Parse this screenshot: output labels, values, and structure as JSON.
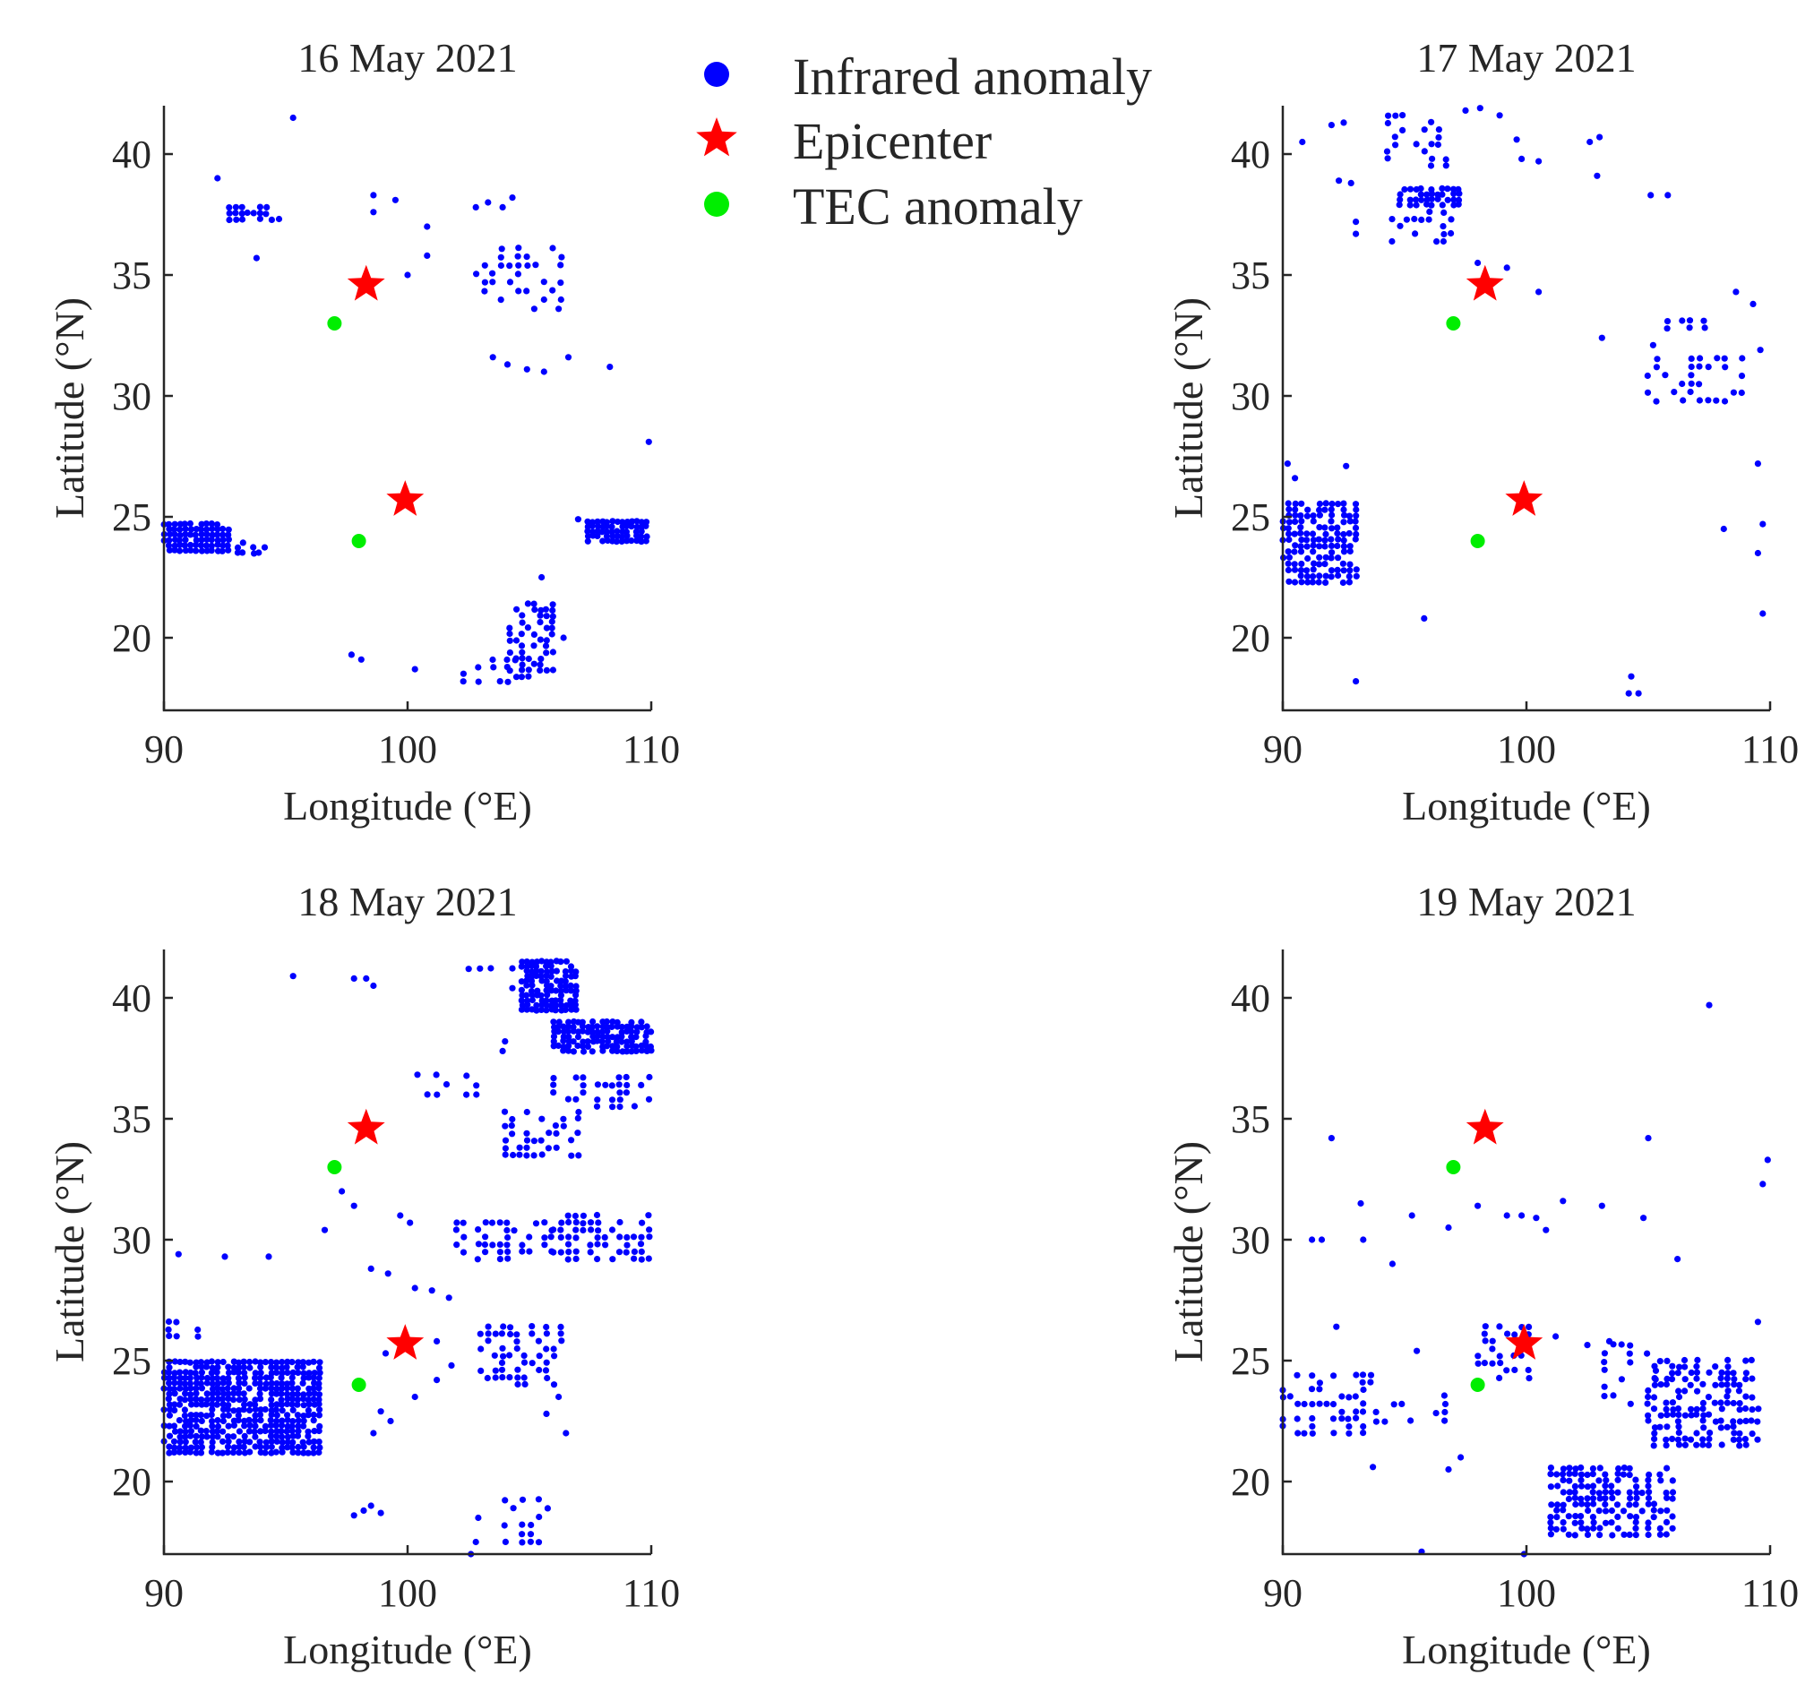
{
  "figure": {
    "legend": {
      "infrared_label": "Infrared anomaly",
      "epicenter_label": "Epicenter",
      "tec_label": "TEC anomaly"
    },
    "colors": {
      "infrared": "#0000ff",
      "epicenter": "#ff0000",
      "tec": "#00ee00",
      "axis": "#262626"
    }
  },
  "chart_data": [
    {
      "type": "scatter",
      "title": "16 May 2021",
      "xlabel": "Longitude (°E)",
      "ylabel": "Latitude (°N)",
      "xlim": [
        90,
        110
      ],
      "ylim": [
        17,
        42
      ],
      "xticks": [
        "90",
        "100",
        "110"
      ],
      "yticks": [
        "20",
        "25",
        "30",
        "35",
        "40"
      ],
      "epicenters": [
        [
          98.3,
          34.6
        ],
        [
          99.9,
          25.7
        ]
      ],
      "tec": [
        [
          97.0,
          33.0
        ],
        [
          98.0,
          24.0
        ]
      ],
      "infrared_clusters": [
        {
          "bx": [
            90.0,
            92.8
          ],
          "by": [
            23.6,
            24.9
          ],
          "step": 0.22,
          "fill": 0.9
        },
        {
          "bx": [
            92.8,
            94.2
          ],
          "by": [
            23.5,
            24.0
          ],
          "step": 0.22,
          "fill": 0.6
        },
        {
          "bx": [
            92.7,
            94.8
          ],
          "by": [
            37.3,
            37.8
          ],
          "step": 0.25,
          "fill": 0.7
        },
        {
          "bx": [
            102.8,
            106.3
          ],
          "by": [
            34.0,
            36.3
          ],
          "step": 0.35,
          "fill": 0.4
        },
        {
          "bx": [
            102.3,
            104.6
          ],
          "by": [
            18.2,
            19.2
          ],
          "step": 0.3,
          "fill": 0.45
        },
        {
          "bx": [
            104.2,
            106.0
          ],
          "by": [
            18.4,
            21.4
          ],
          "step": 0.25,
          "fill": 0.55
        },
        {
          "bx": [
            107.4,
            109.8
          ],
          "by": [
            24.0,
            24.9
          ],
          "step": 0.2,
          "fill": 0.8
        }
      ],
      "infrared_points": [
        [
          95.3,
          41.5
        ],
        [
          92.2,
          39.0
        ],
        [
          93.8,
          35.7
        ],
        [
          98.6,
          38.3
        ],
        [
          98.6,
          37.6
        ],
        [
          99.5,
          38.1
        ],
        [
          100.0,
          35.0
        ],
        [
          100.8,
          37.0
        ],
        [
          100.8,
          35.8
        ],
        [
          102.8,
          37.8
        ],
        [
          103.3,
          38.0
        ],
        [
          103.9,
          37.8
        ],
        [
          104.3,
          38.2
        ],
        [
          103.5,
          31.6
        ],
        [
          104.1,
          31.3
        ],
        [
          104.9,
          31.1
        ],
        [
          105.6,
          31.0
        ],
        [
          106.6,
          31.6
        ],
        [
          105.2,
          33.6
        ],
        [
          106.2,
          33.6
        ],
        [
          108.3,
          31.2
        ],
        [
          109.9,
          28.1
        ],
        [
          107.0,
          24.9
        ],
        [
          97.7,
          19.3
        ],
        [
          98.1,
          19.1
        ],
        [
          100.3,
          18.7
        ],
        [
          105.5,
          22.5
        ],
        [
          106.4,
          20.0
        ]
      ]
    },
    {
      "type": "scatter",
      "title": "17 May 2021",
      "xlabel": "Longitude (°E)",
      "ylabel": "Latitude (°N)",
      "xlim": [
        90,
        110
      ],
      "ylim": [
        17,
        42
      ],
      "xticks": [
        "90",
        "100",
        "110"
      ],
      "yticks": [
        "20",
        "25",
        "30",
        "35",
        "40"
      ],
      "epicenters": [
        [
          98.3,
          34.6
        ],
        [
          99.9,
          25.7
        ]
      ],
      "tec": [
        [
          97.0,
          33.0
        ],
        [
          98.0,
          24.0
        ]
      ],
      "infrared_clusters": [
        {
          "bx": [
            90.0,
            93.2
          ],
          "by": [
            22.3,
            25.6
          ],
          "step": 0.25,
          "fill": 0.7
        },
        {
          "bx": [
            94.3,
            97.2
          ],
          "by": [
            39.5,
            41.8
          ],
          "step": 0.3,
          "fill": 0.35
        },
        {
          "bx": [
            94.8,
            97.3
          ],
          "by": [
            37.9,
            38.6
          ],
          "step": 0.22,
          "fill": 0.7
        },
        {
          "bx": [
            94.5,
            97.0
          ],
          "by": [
            36.4,
            37.6
          ],
          "step": 0.3,
          "fill": 0.4
        },
        {
          "bx": [
            105.0,
            109.0
          ],
          "by": [
            29.8,
            31.8
          ],
          "step": 0.35,
          "fill": 0.35
        },
        {
          "bx": [
            105.8,
            107.3
          ],
          "by": [
            32.8,
            33.1
          ],
          "step": 0.3,
          "fill": 0.6
        }
      ],
      "infrared_points": [
        [
          90.8,
          40.5
        ],
        [
          92.0,
          41.2
        ],
        [
          92.5,
          41.3
        ],
        [
          92.3,
          38.9
        ],
        [
          92.8,
          38.8
        ],
        [
          93.0,
          37.2
        ],
        [
          93.0,
          36.7
        ],
        [
          97.5,
          41.8
        ],
        [
          98.1,
          41.9
        ],
        [
          98.9,
          41.6
        ],
        [
          98.0,
          35.5
        ],
        [
          99.2,
          35.3
        ],
        [
          99.6,
          40.6
        ],
        [
          99.8,
          39.8
        ],
        [
          100.5,
          39.7
        ],
        [
          100.5,
          34.3
        ],
        [
          102.6,
          40.5
        ],
        [
          103.0,
          40.7
        ],
        [
          102.9,
          39.1
        ],
        [
          103.1,
          32.4
        ],
        [
          105.1,
          38.3
        ],
        [
          105.8,
          38.3
        ],
        [
          105.2,
          32.1
        ],
        [
          108.6,
          34.3
        ],
        [
          109.3,
          33.8
        ],
        [
          109.6,
          31.9
        ],
        [
          109.5,
          27.2
        ],
        [
          109.7,
          24.7
        ],
        [
          109.5,
          23.5
        ],
        [
          108.1,
          24.5
        ],
        [
          109.7,
          21.0
        ],
        [
          90.2,
          27.2
        ],
        [
          90.5,
          26.6
        ],
        [
          92.6,
          27.1
        ],
        [
          95.8,
          20.8
        ],
        [
          93.0,
          18.2
        ],
        [
          104.3,
          18.4
        ],
        [
          104.6,
          17.7
        ],
        [
          104.2,
          17.7
        ]
      ]
    },
    {
      "type": "scatter",
      "title": "18 May 2021",
      "xlabel": "Longitude (°E)",
      "ylabel": "Latitude (°N)",
      "xlim": [
        90,
        110
      ],
      "ylim": [
        17,
        42
      ],
      "xticks": [
        "90",
        "100",
        "110"
      ],
      "yticks": [
        "20",
        "25",
        "30",
        "35",
        "40"
      ],
      "epicenters": [
        [
          98.3,
          34.6
        ],
        [
          99.9,
          25.7
        ]
      ],
      "tec": [
        [
          97.0,
          33.0
        ],
        [
          98.0,
          24.0
        ]
      ],
      "infrared_clusters": [
        {
          "bx": [
            90.0,
            96.5
          ],
          "by": [
            21.2,
            25.0
          ],
          "step": 0.22,
          "fill": 0.8
        },
        {
          "bx": [
            90.2,
            91.5
          ],
          "by": [
            26.0,
            26.7
          ],
          "step": 0.3,
          "fill": 0.5
        },
        {
          "bx": [
            104.7,
            107.0
          ],
          "by": [
            39.5,
            41.6
          ],
          "step": 0.2,
          "fill": 0.85
        },
        {
          "bx": [
            106.0,
            110.0
          ],
          "by": [
            37.8,
            39.0
          ],
          "step": 0.2,
          "fill": 0.8
        },
        {
          "bx": [
            106.0,
            110.0
          ],
          "by": [
            35.5,
            36.9
          ],
          "step": 0.3,
          "fill": 0.55
        },
        {
          "bx": [
            104.0,
            107.0
          ],
          "by": [
            33.5,
            35.5
          ],
          "step": 0.3,
          "fill": 0.35
        },
        {
          "bx": [
            102.0,
            106.0
          ],
          "by": [
            29.2,
            30.8
          ],
          "step": 0.3,
          "fill": 0.4
        },
        {
          "bx": [
            106.0,
            110.0
          ],
          "by": [
            29.2,
            31.2
          ],
          "step": 0.3,
          "fill": 0.5
        },
        {
          "bx": [
            103.0,
            106.5
          ],
          "by": [
            24.0,
            26.5
          ],
          "step": 0.3,
          "fill": 0.45
        },
        {
          "bx": [
            104.0,
            106.0
          ],
          "by": [
            17.5,
            19.8
          ],
          "step": 0.35,
          "fill": 0.35
        },
        {
          "bx": [
            100.0,
            102.8
          ],
          "by": [
            36.0,
            36.8
          ],
          "step": 0.4,
          "fill": 0.5
        },
        {
          "bx": [
            102.5,
            104.5
          ],
          "by": [
            41.2,
            41.4
          ],
          "step": 0.45,
          "fill": 0.8
        }
      ],
      "infrared_points": [
        [
          95.3,
          40.9
        ],
        [
          97.8,
          40.8
        ],
        [
          98.3,
          40.8
        ],
        [
          98.6,
          40.5
        ],
        [
          90.6,
          29.4
        ],
        [
          92.5,
          29.3
        ],
        [
          94.3,
          29.3
        ],
        [
          96.6,
          30.4
        ],
        [
          97.8,
          31.4
        ],
        [
          97.3,
          32.0
        ],
        [
          99.7,
          31.0
        ],
        [
          100.1,
          30.7
        ],
        [
          98.5,
          28.8
        ],
        [
          99.2,
          28.6
        ],
        [
          100.3,
          28.0
        ],
        [
          101.0,
          27.9
        ],
        [
          101.7,
          27.6
        ],
        [
          99.1,
          25.3
        ],
        [
          98.9,
          22.9
        ],
        [
          98.6,
          22.0
        ],
        [
          99.3,
          22.5
        ],
        [
          101.2,
          25.8
        ],
        [
          101.8,
          24.8
        ],
        [
          101.2,
          24.2
        ],
        [
          100.3,
          23.5
        ],
        [
          98.5,
          19.0
        ],
        [
          98.2,
          18.8
        ],
        [
          97.8,
          18.6
        ],
        [
          98.9,
          18.7
        ],
        [
          102.9,
          18.5
        ],
        [
          102.8,
          17.5
        ],
        [
          102.6,
          17.0
        ],
        [
          104.3,
          40.4
        ],
        [
          104.0,
          38.2
        ],
        [
          103.9,
          37.8
        ],
        [
          105.7,
          22.8
        ],
        [
          106.5,
          22.0
        ],
        [
          106.2,
          23.5
        ]
      ]
    },
    {
      "type": "scatter",
      "title": "19 May 2021",
      "xlabel": "Longitude (°E)",
      "ylabel": "Latitude (°N)",
      "xlim": [
        90,
        110
      ],
      "ylim": [
        17,
        42
      ],
      "xticks": [
        "90",
        "100",
        "110"
      ],
      "yticks": [
        "20",
        "25",
        "30",
        "35",
        "40"
      ],
      "epicenters": [
        [
          98.3,
          34.6
        ],
        [
          99.9,
          25.7
        ]
      ],
      "tec": [
        [
          97.0,
          33.0
        ],
        [
          98.0,
          24.0
        ]
      ],
      "infrared_clusters": [
        {
          "bx": [
            90.0,
            93.7
          ],
          "by": [
            22.0,
            24.5
          ],
          "step": 0.3,
          "fill": 0.35
        },
        {
          "bx": [
            93.5,
            96.8
          ],
          "by": [
            22.5,
            23.8
          ],
          "step": 0.35,
          "fill": 0.3
        },
        {
          "bx": [
            98.0,
            100.2
          ],
          "by": [
            24.0,
            26.5
          ],
          "step": 0.3,
          "fill": 0.35
        },
        {
          "bx": [
            101.0,
            106.0
          ],
          "by": [
            17.8,
            20.6
          ],
          "step": 0.25,
          "fill": 0.5
        },
        {
          "bx": [
            105.0,
            109.5
          ],
          "by": [
            21.5,
            25.0
          ],
          "step": 0.25,
          "fill": 0.45
        },
        {
          "bx": [
            102.5,
            105.5
          ],
          "by": [
            23.2,
            25.8
          ],
          "step": 0.35,
          "fill": 0.25
        }
      ],
      "infrared_points": [
        [
          107.5,
          39.7
        ],
        [
          92.0,
          34.2
        ],
        [
          105.0,
          34.2
        ],
        [
          109.9,
          33.3
        ],
        [
          109.7,
          32.3
        ],
        [
          93.2,
          31.5
        ],
        [
          95.3,
          31.0
        ],
        [
          91.2,
          30.0
        ],
        [
          91.6,
          30.0
        ],
        [
          93.3,
          30.0
        ],
        [
          94.5,
          29.0
        ],
        [
          96.8,
          30.5
        ],
        [
          98.0,
          31.4
        ],
        [
          99.2,
          31.0
        ],
        [
          99.8,
          31.0
        ],
        [
          100.4,
          30.9
        ],
        [
          100.8,
          30.4
        ],
        [
          101.5,
          31.6
        ],
        [
          103.1,
          31.4
        ],
        [
          104.8,
          30.9
        ],
        [
          106.2,
          29.2
        ],
        [
          109.5,
          26.6
        ],
        [
          95.5,
          25.4
        ],
        [
          92.2,
          26.4
        ],
        [
          97.3,
          21.0
        ],
        [
          96.8,
          20.5
        ],
        [
          95.7,
          17.1
        ],
        [
          93.7,
          20.6
        ],
        [
          99.9,
          17.0
        ],
        [
          102.0,
          16.9
        ],
        [
          104.6,
          16.8
        ],
        [
          101.2,
          26.0
        ],
        [
          103.4,
          25.8
        ]
      ]
    }
  ]
}
